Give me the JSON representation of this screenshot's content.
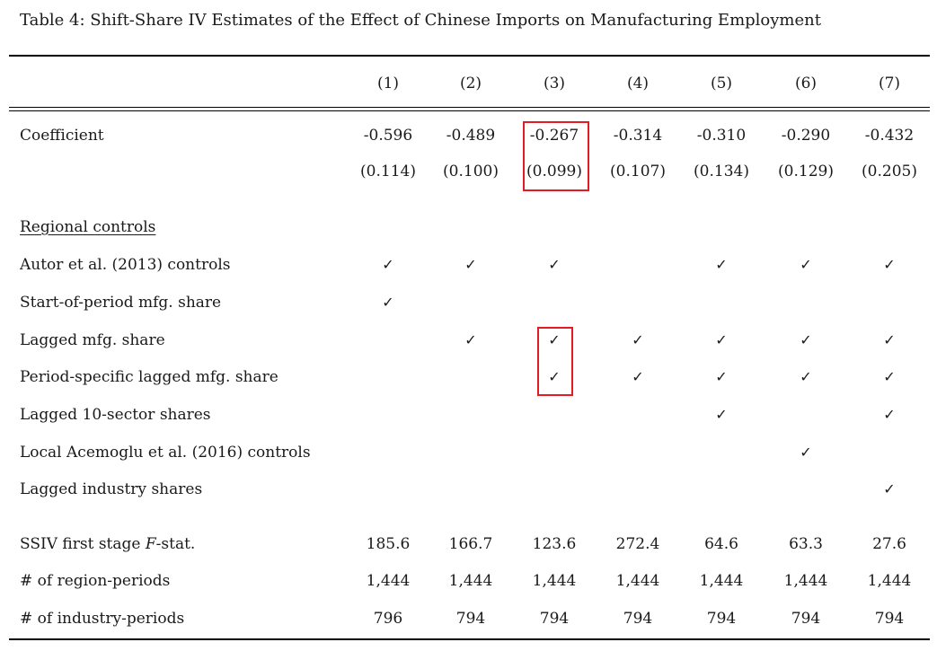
{
  "caption": "Table 4: Shift-Share IV Estimates of the Effect of Chinese Imports on Manufacturing Employment",
  "columns": [
    "(1)",
    "(2)",
    "(3)",
    "(4)",
    "(5)",
    "(6)",
    "(7)"
  ],
  "coefficient": {
    "label": "Coefficient",
    "estimates": [
      "-0.596",
      "-0.489",
      "-0.267",
      "-0.314",
      "-0.310",
      "-0.290",
      "-0.432"
    ],
    "std_errors": [
      "(0.114)",
      "(0.100)",
      "(0.099)",
      "(0.107)",
      "(0.134)",
      "(0.129)",
      "(0.205)"
    ]
  },
  "controls_heading": "Regional controls",
  "check_glyph": "✓",
  "controls": [
    {
      "label": "Autor et al. (2013) controls",
      "checks": [
        true,
        true,
        true,
        false,
        true,
        true,
        true
      ]
    },
    {
      "label": "Start-of-period mfg. share",
      "checks": [
        true,
        false,
        false,
        false,
        false,
        false,
        false
      ]
    },
    {
      "label": "Lagged mfg. share",
      "checks": [
        false,
        true,
        true,
        true,
        true,
        true,
        true
      ]
    },
    {
      "label": "Period-specific lagged mfg. share",
      "checks": [
        false,
        false,
        true,
        true,
        true,
        true,
        true
      ]
    },
    {
      "label": "Lagged 10-sector shares",
      "checks": [
        false,
        false,
        false,
        false,
        true,
        false,
        true
      ]
    },
    {
      "label": "Local Acemoglu et al. (2016) controls",
      "checks": [
        false,
        false,
        false,
        false,
        false,
        true,
        false
      ]
    },
    {
      "label": "Lagged industry shares",
      "checks": [
        false,
        false,
        false,
        false,
        false,
        false,
        true
      ]
    }
  ],
  "stats": [
    {
      "label_pre": "SSIV first stage ",
      "label_em": "F",
      "label_post": "-stat.",
      "values": [
        "185.6",
        "166.7",
        "123.6",
        "272.4",
        "64.6",
        "63.3",
        "27.6"
      ]
    },
    {
      "label_pre": "# of region-periods",
      "label_em": "",
      "label_post": "",
      "values": [
        "1,444",
        "1,444",
        "1,444",
        "1,444",
        "1,444",
        "1,444",
        "1,444"
      ]
    },
    {
      "label_pre": "# of industry-periods",
      "label_em": "",
      "label_post": "",
      "values": [
        "796",
        "794",
        "794",
        "794",
        "794",
        "794",
        "794"
      ]
    }
  ],
  "highlight_color": "#e31b23"
}
